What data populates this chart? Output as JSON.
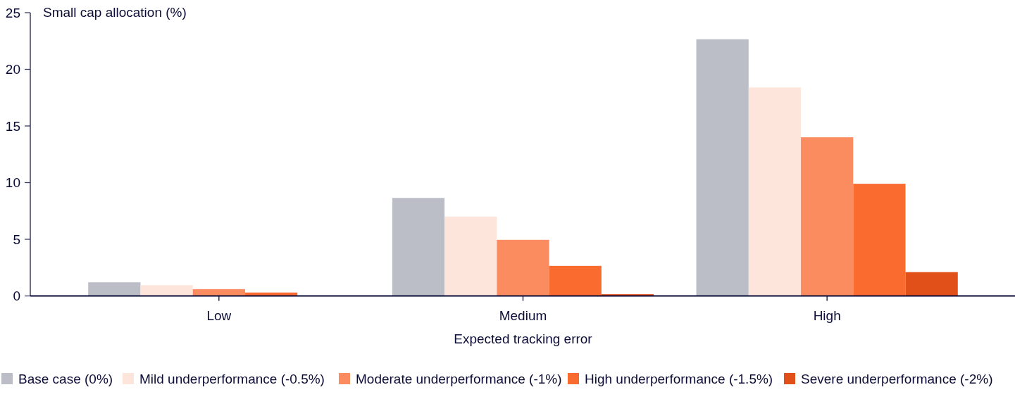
{
  "chart_data": {
    "type": "bar",
    "xlabel": "Expected tracking error",
    "ylabel": "Small cap allocation (%)",
    "categories": [
      "Low",
      "Medium",
      "High"
    ],
    "series": [
      {
        "name": "Base case (0%)",
        "color": "#bbbec6",
        "values": [
          1.2,
          8.65,
          22.65
        ]
      },
      {
        "name": "Mild underperformance (-0.5%)",
        "color": "#fde5dc",
        "values": [
          0.95,
          7.0,
          18.4
        ]
      },
      {
        "name": "Moderate underperformance (-1%)",
        "color": "#fb8c5f",
        "values": [
          0.6,
          4.95,
          14.0
        ]
      },
      {
        "name": "High underperformance (-1.5%)",
        "color": "#fa6b30",
        "values": [
          0.3,
          2.65,
          9.9
        ]
      },
      {
        "name": "Severe underperformance (-2%)",
        "color": "#e05018",
        "values": [
          0,
          0.15,
          2.1
        ]
      }
    ],
    "ylim": [
      0,
      25
    ],
    "yticks": [
      0,
      5,
      10,
      15,
      20,
      25
    ],
    "grid": false,
    "legend": "bottom"
  }
}
